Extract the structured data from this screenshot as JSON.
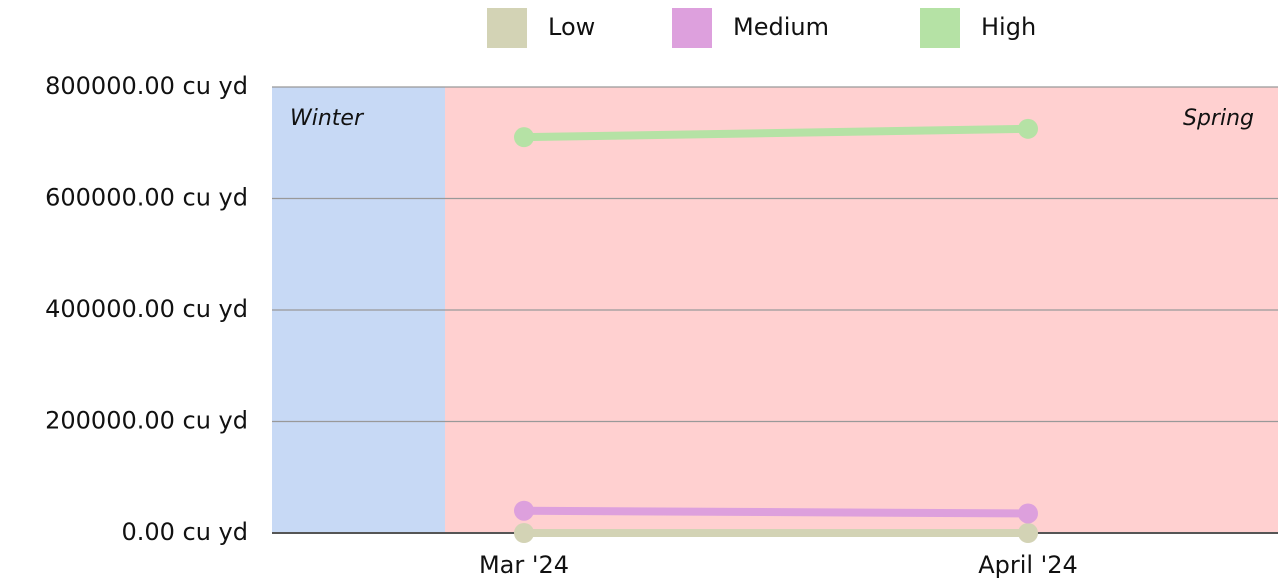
{
  "chart_data": {
    "type": "line",
    "categories": [
      "Mar '24",
      "April '24"
    ],
    "series": [
      {
        "name": "Low",
        "color": "#d3d3b5",
        "values": [
          0,
          0
        ]
      },
      {
        "name": "Medium",
        "color": "#dda0dd",
        "values": [
          40000,
          35000
        ]
      },
      {
        "name": "High",
        "color": "#b5e2a5",
        "values": [
          710000,
          725000
        ]
      }
    ],
    "bands": [
      {
        "label": "Winter",
        "color": "#c7d9f5",
        "text_color": "#2f5fc4"
      },
      {
        "label": "Spring",
        "color": "#ffd0d0",
        "text_color": "#e85060"
      }
    ],
    "ylim": [
      0,
      800000
    ],
    "yticks": [
      {
        "value": 0,
        "label": "0.00 cu yd"
      },
      {
        "value": 200000,
        "label": "200000.00 cu yd"
      },
      {
        "value": 400000,
        "label": "400000.00 cu yd"
      },
      {
        "value": 600000,
        "label": "600000.00 cu yd"
      },
      {
        "value": 800000,
        "label": "800000.00 cu yd"
      }
    ],
    "grid": true
  }
}
